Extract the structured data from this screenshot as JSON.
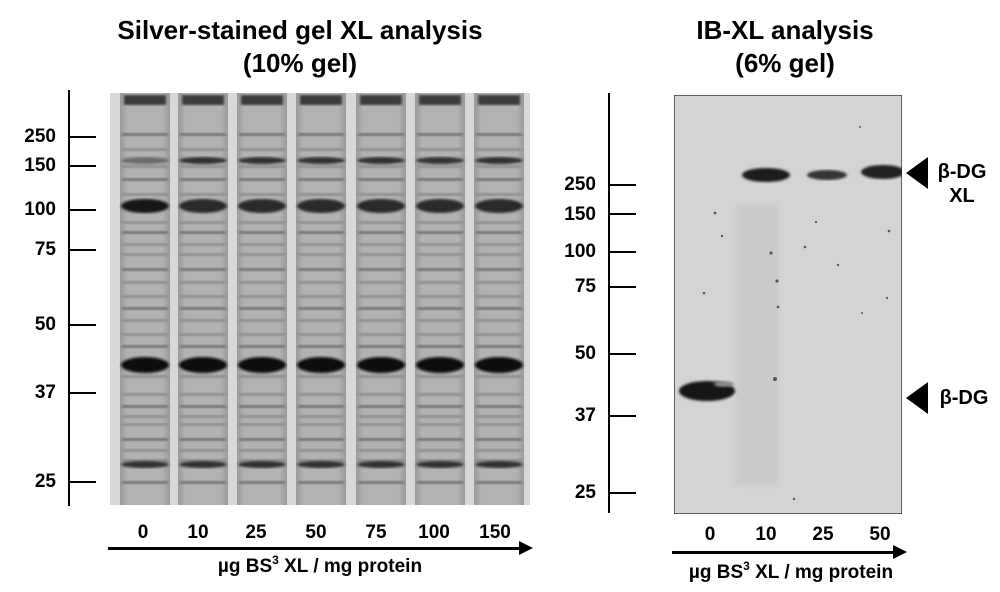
{
  "left_panel": {
    "title_line1": "Silver-stained gel XL analysis",
    "title_line2": "(10% gel)",
    "mw_markers": [
      "250",
      "150",
      "100",
      "75",
      "50",
      "37",
      "25"
    ],
    "lanes": [
      "0",
      "10",
      "25",
      "50",
      "75",
      "100",
      "150"
    ],
    "xaxis_label_prefix": "µg BS",
    "xaxis_label_sup": "3",
    "xaxis_label_suffix": " XL / mg protein"
  },
  "right_panel": {
    "title_line1": "IB-XL analysis",
    "title_line2": "(6% gel)",
    "mw_markers": [
      "250",
      "150",
      "100",
      "75",
      "50",
      "37",
      "25"
    ],
    "lanes": [
      "0",
      "10",
      "25",
      "50"
    ],
    "band_labels": {
      "xl_line1": "β-DG",
      "xl_line2": "XL",
      "monomer": "β-DG"
    },
    "xaxis_label_prefix": "µg BS",
    "xaxis_label_sup": "3",
    "xaxis_label_suffix": " XL / mg protein"
  },
  "colors": {
    "gel_background": "#bdbdbd",
    "blot_background": "#d2d2d2",
    "band_dark": "#1a1a1a"
  }
}
